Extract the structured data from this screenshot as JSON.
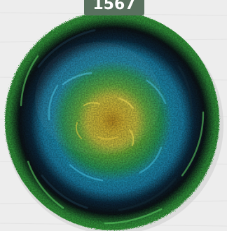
{
  "product": {
    "color_code": "1567"
  },
  "image": {
    "subject": "yarn-cake",
    "palette": {
      "center": "#c9a21f",
      "yellow": "#d9c234",
      "green": "#2f9a3a",
      "teal": "#1f8fb0",
      "navy": "#0d2a3e",
      "black": "#0a0f12",
      "outer_green": "#3aa83f",
      "background": "#ececec",
      "tag": "#59715f"
    }
  }
}
